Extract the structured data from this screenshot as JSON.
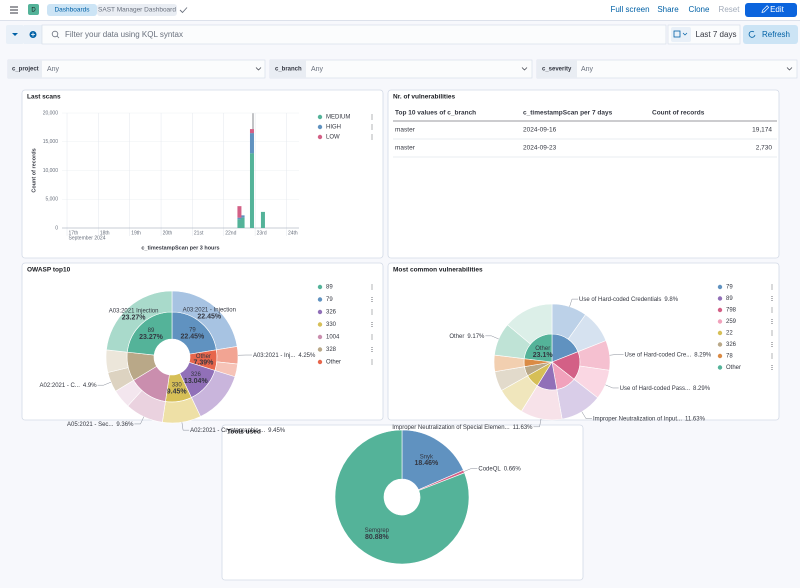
{
  "header": {
    "badge": "D",
    "breadcrumbs": [
      "Dashboards",
      "SAST Manager Dashboard"
    ],
    "actions": [
      "Full screen",
      "Share",
      "Clone",
      "Reset"
    ],
    "edit": "Edit"
  },
  "query": {
    "placeholder": "Filter your data using KQL syntax",
    "date": "Last 7 days",
    "refresh": "Refresh"
  },
  "controls": [
    {
      "label": "c_project",
      "value": "Any"
    },
    {
      "label": "c_branch",
      "value": "Any"
    },
    {
      "label": "c_severity",
      "value": "Any"
    }
  ],
  "table": {
    "title": "Nr. of vulnerabilities",
    "columns": [
      "Top 10 values of c_branch",
      "c_timestampScan per 7 days",
      "Count of records"
    ],
    "rows": [
      [
        "master",
        "2024-09-16",
        "19,174"
      ],
      [
        "master",
        "2024-09-23",
        "2,730"
      ]
    ]
  },
  "chart_data": [
    {
      "type": "bar",
      "title": "Last scans",
      "ylabel": "Count of records",
      "xlabel": "c_timestampScan per 3 hours",
      "x": [
        22.5,
        22.6,
        22.9,
        23.25
      ],
      "series": [
        {
          "name": "MEDIUM",
          "color": "#54b399",
          "values": [
            1500,
            1800,
            13000,
            2800
          ]
        },
        {
          "name": "HIGH",
          "color": "#6092c0",
          "values": [
            300,
            400,
            3500,
            0
          ]
        },
        {
          "name": "LOW",
          "color": "#d36086",
          "values": [
            2000,
            0,
            700,
            0
          ]
        }
      ],
      "xlim": [
        16.84,
        24.4
      ],
      "xticks": [
        {
          "value": 17,
          "label": "17th"
        },
        {
          "value": 18,
          "label": "18th"
        },
        {
          "value": 19,
          "label": "19th"
        },
        {
          "value": 20,
          "label": "20th"
        },
        {
          "value": 21,
          "label": "21st"
        },
        {
          "value": 22,
          "label": "22nd"
        },
        {
          "value": 23,
          "label": "23rd"
        },
        {
          "value": 24,
          "label": "24th"
        }
      ],
      "xtick_sublabel": "September 2024",
      "ylim": [
        0,
        20000
      ],
      "yticks": [
        0,
        {
          "value": 5000,
          "label": "5,000"
        },
        {
          "value": 10000,
          "label": "10,000"
        },
        {
          "value": 15000,
          "label": "15,000"
        },
        {
          "value": 20000,
          "label": "20,000"
        }
      ],
      "grid": true
    },
    {
      "type": "sunburst",
      "title": "OWASP top10",
      "categories": [
        "79",
        "Other",
        "326",
        "330",
        "1004",
        "328",
        "89"
      ],
      "values": [
        22.45,
        7.39,
        13.04,
        9.45,
        14.0,
        10.4,
        23.27
      ],
      "value_labels": [
        "22.45%",
        "7.39%",
        "13.04%",
        "9.45%",
        null,
        null,
        "23.27%"
      ],
      "colors": [
        "#6092c0",
        "#e7664c",
        "#9170b8",
        "#d6bf57",
        "#ca8eae",
        "#b9a888",
        "#54b399"
      ],
      "legend": [
        "89",
        "79",
        "326",
        "330",
        "1004",
        "328",
        "Other"
      ],
      "outer_ring": {
        "labels": [
          "A03:2021 - Injection",
          "A03:2021 - Inj...",
          null,
          null,
          "A02:2021 - Cryptographic ...",
          "A05:2021 - Sec...",
          null,
          "A02:2021 - C...",
          null,
          "A03:2021 Injection"
        ],
        "values": [
          22.45,
          4.25,
          3.14,
          13.04,
          9.45,
          9.36,
          4.64,
          4.9,
          5.5,
          23.27
        ],
        "value_labels": [
          "22.45%",
          "4.25%",
          null,
          null,
          "9.45%",
          "9.36%",
          null,
          "4.9%",
          null,
          "23.27%"
        ],
        "colors": [
          "#a7c3e2",
          "#f2a493",
          "#f6c3b7",
          "#c9b5dc",
          "#eee0a6",
          "#ead2df",
          "#f3e6ee",
          "#ddd3c1",
          "#ece6da",
          "#a9dacb"
        ]
      }
    },
    {
      "type": "sunburst",
      "title": "Most common vulnerabilities",
      "categories": [
        "79",
        "798",
        "259",
        "89",
        "22",
        "326",
        "78",
        "Other"
      ],
      "values": [
        19.0,
        16.58,
        11.63,
        11.63,
        8.0,
        5.5,
        4.56,
        23.1
      ],
      "value_labels": [
        null,
        null,
        null,
        null,
        null,
        null,
        null,
        "23.1%"
      ],
      "colors": [
        "#6092c0",
        "#d36086",
        "#f1a2bc",
        "#9170b8",
        "#d6bf57",
        "#b9a888",
        "#da8b45",
        "#54b399"
      ],
      "legend": [
        "79",
        "89",
        "798",
        "259",
        "22",
        "326",
        "78",
        "Other"
      ],
      "outer_ring": {
        "labels": [
          "Use of Hard-coded Credentials",
          null,
          "Use of Hard-coded Cre...",
          "Use of Hard-coded Pass...",
          "Improper Neutralization of Input...",
          "Improper Neutralization of Special Elemen...",
          null,
          null,
          null,
          "Other",
          null
        ],
        "values": [
          9.8,
          9.2,
          8.29,
          8.29,
          11.63,
          11.63,
          8.0,
          5.5,
          4.56,
          9.17,
          13.93
        ],
        "value_labels": [
          "9.8%",
          null,
          "8.29%",
          "8.29%",
          "11.63%",
          "11.63%",
          null,
          null,
          null,
          "9.17%",
          null
        ],
        "colors": [
          "#bcd1e8",
          "#d6e2f0",
          "#f5c0d0",
          "#fad7e3",
          "#d9cde8",
          "#f7e2e9",
          "#f0e6bc",
          "#e2dacb",
          "#f2cfb0",
          "#bfe3d6",
          "#dcefe8"
        ]
      }
    },
    {
      "type": "pie",
      "title": "Tools used",
      "categories": [
        "Snyk",
        "CodeQL",
        "Semgrep"
      ],
      "values": [
        18.46,
        0.66,
        80.88
      ],
      "value_labels": [
        "18.46%",
        "0.66%",
        "80.88%"
      ],
      "colors": [
        "#6092c0",
        "#d36086",
        "#54b399"
      ]
    }
  ]
}
